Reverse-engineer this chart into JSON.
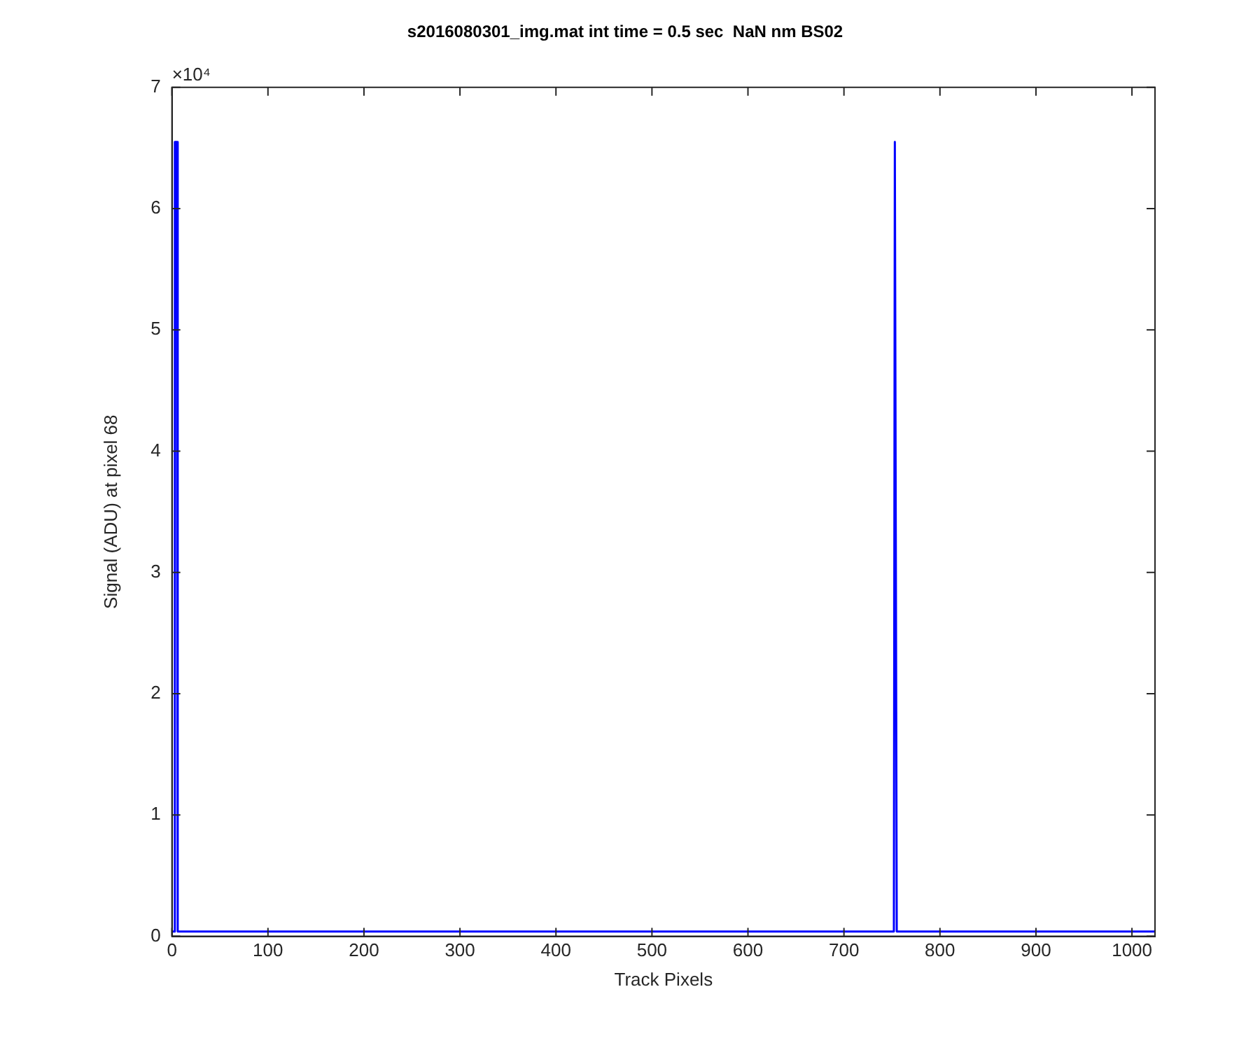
{
  "chart_data": {
    "type": "line",
    "title": "s2016080301_img.mat int time = 0.5 sec  NaN nm BS02",
    "xlabel": "Track Pixels",
    "ylabel": "Signal (ADU) at pixel 68",
    "annotations": [
      "×10⁴"
    ],
    "series": [
      {
        "color": "#0000ff",
        "x": [
          1,
          2,
          3,
          5,
          6,
          8,
          20,
          40,
          60,
          80,
          100,
          120,
          140,
          160,
          180,
          200,
          220,
          240,
          260,
          280,
          300,
          320,
          340,
          360,
          380,
          400,
          420,
          440,
          460,
          480,
          500,
          520,
          540,
          560,
          580,
          600,
          620,
          640,
          660,
          680,
          700,
          720,
          740,
          752,
          753,
          754,
          755,
          760,
          780,
          800,
          820,
          840,
          860,
          880,
          900,
          920,
          940,
          960,
          980,
          1000,
          1024
        ],
        "values": [
          0.04,
          0.04,
          6.55,
          6.55,
          0.04,
          0.04,
          0.04,
          0.04,
          0.04,
          0.04,
          0.04,
          0.04,
          0.04,
          0.04,
          0.04,
          0.04,
          0.04,
          0.04,
          0.04,
          0.04,
          0.04,
          0.04,
          0.04,
          0.04,
          0.04,
          0.04,
          0.04,
          0.04,
          0.04,
          0.04,
          0.04,
          0.04,
          0.04,
          0.04,
          0.04,
          0.04,
          0.04,
          0.04,
          0.04,
          0.04,
          0.04,
          0.04,
          0.04,
          0.04,
          6.55,
          6.55,
          0.04,
          0.04,
          0.04,
          0.04,
          0.04,
          0.04,
          0.04,
          0.04,
          0.04,
          0.04,
          0.04,
          0.04,
          0.04,
          0.04,
          0.04
        ]
      }
    ],
    "xlim": [
      0,
      1024
    ],
    "xticks": [
      0,
      100,
      200,
      300,
      400,
      500,
      600,
      700,
      800,
      900,
      1000
    ],
    "ylim": [
      0,
      7
    ],
    "yticks": [
      0,
      1,
      2,
      3,
      4,
      5,
      6,
      7
    ],
    "grid": false,
    "legend": false,
    "marker": "none",
    "line_style": "solid"
  }
}
